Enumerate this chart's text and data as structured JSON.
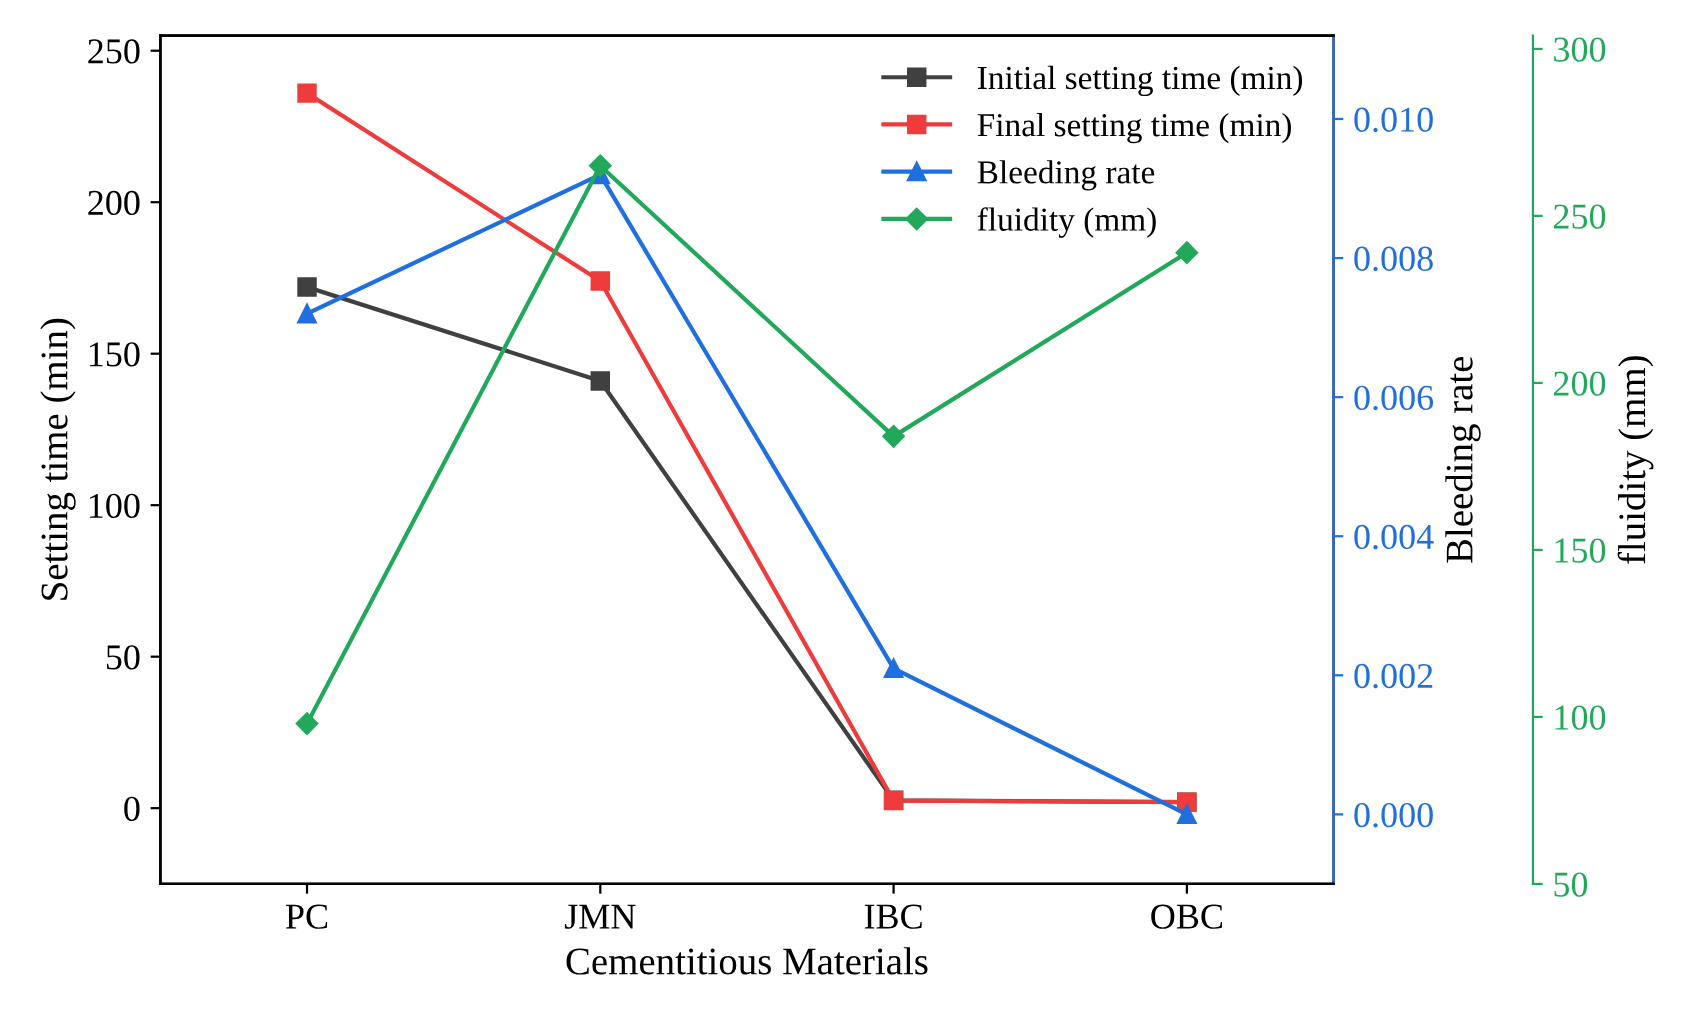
{
  "chart_data": {
    "type": "line",
    "xlabel": "Cementitious Materials",
    "ylabel": "Setting time (min)",
    "y2label": "Bleeding rate",
    "y3label": "fluidity (mm)",
    "categories": [
      "PC",
      "JMN",
      "IBC",
      "OBC"
    ],
    "series": [
      {
        "name": "Initial setting time (min)",
        "color": "#404040",
        "marker": "square",
        "values": [
          172,
          141,
          2.6,
          2
        ]
      },
      {
        "name": "Final setting time (min)",
        "color": "#ee3b3b",
        "marker": "square",
        "values": [
          236,
          174,
          2.5,
          2
        ]
      },
      {
        "name": "Bleeding rate",
        "color": "#1f6fe0",
        "marker": "triangle",
        "axis": "y2",
        "values": [
          0.0072,
          0.0092,
          0.0021,
          0.0
        ]
      },
      {
        "name": "fluidity (mm)",
        "color": "#22a85a",
        "marker": "diamond",
        "axis": "y3",
        "values": [
          98,
          265,
          184,
          239
        ]
      }
    ],
    "ylim": [
      -25,
      255
    ],
    "yticks": [
      0,
      50,
      100,
      150,
      200,
      250
    ],
    "y2lim": [
      -0.001,
      0.0112
    ],
    "y2ticks": [
      {
        "value": 0,
        "label": "0.000"
      },
      {
        "value": 0.002,
        "label": "0.002"
      },
      {
        "value": 0.004,
        "label": "0.004"
      },
      {
        "value": 0.006,
        "label": "0.006"
      },
      {
        "value": 0.008,
        "label": "0.008"
      },
      {
        "value": 0.01,
        "label": "0.010"
      }
    ],
    "y3lim": [
      50,
      304
    ],
    "y3ticks": [
      50,
      100,
      150,
      200,
      250,
      300
    ],
    "legend": "top right",
    "grid": false,
    "line_style": "solid"
  }
}
